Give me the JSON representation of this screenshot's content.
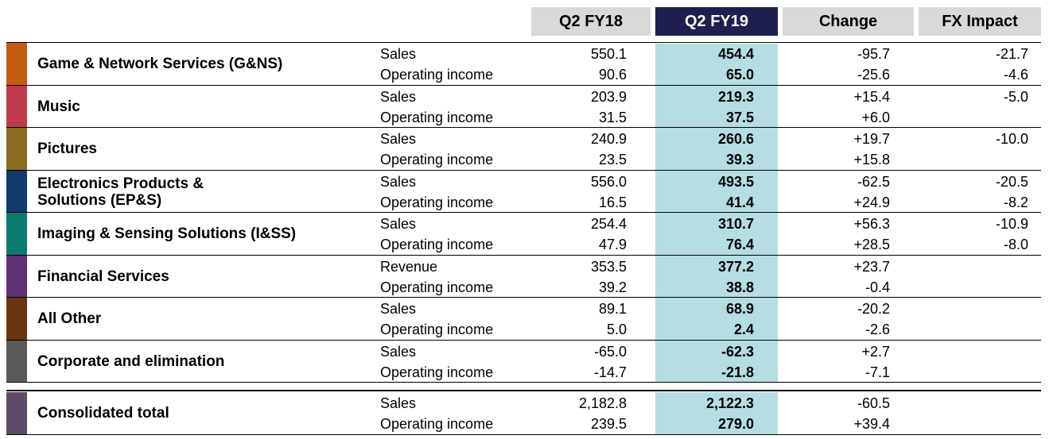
{
  "header": {
    "col1": "Q2 FY18",
    "col2": "Q2 FY19",
    "col3": "Change",
    "col4": "FX Impact"
  },
  "colors": {
    "header_gray": "#d9d9d9",
    "header_navy": "#1f1f4f",
    "highlight_column": "#b6dde3"
  },
  "segments": [
    {
      "name_lines": [
        "Game & Network Services (G&NS)"
      ],
      "color": "#c55a11",
      "rows": [
        {
          "label": "Sales",
          "q2fy18": "550.1",
          "q2fy19": "454.4",
          "change": "-95.7",
          "fx": "-21.7"
        },
        {
          "label": "Operating income",
          "q2fy18": "90.6",
          "q2fy19": "65.0",
          "change": "-25.6",
          "fx": "-4.6"
        }
      ]
    },
    {
      "name_lines": [
        "Music"
      ],
      "color": "#c0394a",
      "rows": [
        {
          "label": "Sales",
          "q2fy18": "203.9",
          "q2fy19": "219.3",
          "change": "+15.4",
          "fx": "-5.0"
        },
        {
          "label": "Operating income",
          "q2fy18": "31.5",
          "q2fy19": "37.5",
          "change": "+6.0",
          "fx": ""
        }
      ]
    },
    {
      "name_lines": [
        "Pictures"
      ],
      "color": "#8b6b1f",
      "rows": [
        {
          "label": "Sales",
          "q2fy18": "240.9",
          "q2fy19": "260.6",
          "change": "+19.7",
          "fx": "-10.0"
        },
        {
          "label": "Operating income",
          "q2fy18": "23.5",
          "q2fy19": "39.3",
          "change": "+15.8",
          "fx": ""
        }
      ]
    },
    {
      "name_lines": [
        "Electronics Products &",
        "Solutions (EP&S)"
      ],
      "color": "#123a6b",
      "rows": [
        {
          "label": "Sales",
          "q2fy18": "556.0",
          "q2fy19": "493.5",
          "change": "-62.5",
          "fx": "-20.5"
        },
        {
          "label": "Operating income",
          "q2fy18": "16.5",
          "q2fy19": "41.4",
          "change": "+24.9",
          "fx": "-8.2"
        }
      ]
    },
    {
      "name_lines": [
        "Imaging & Sensing Solutions (I&SS)"
      ],
      "color": "#0b7a6e",
      "rows": [
        {
          "label": "Sales",
          "q2fy18": "254.4",
          "q2fy19": "310.7",
          "change": "+56.3",
          "fx": "-10.9"
        },
        {
          "label": "Operating income",
          "q2fy18": "47.9",
          "q2fy19": "76.4",
          "change": "+28.5",
          "fx": "-8.0"
        }
      ]
    },
    {
      "name_lines": [
        "Financial Services"
      ],
      "color": "#5e3272",
      "rows": [
        {
          "label": "Revenue",
          "q2fy18": "353.5",
          "q2fy19": "377.2",
          "change": "+23.7",
          "fx": ""
        },
        {
          "label": "Operating income",
          "q2fy18": "39.2",
          "q2fy19": "38.8",
          "change": "-0.4",
          "fx": ""
        }
      ]
    },
    {
      "name_lines": [
        "All Other"
      ],
      "color": "#6b3410",
      "rows": [
        {
          "label": "Sales",
          "q2fy18": "89.1",
          "q2fy19": "68.9",
          "change": "-20.2",
          "fx": ""
        },
        {
          "label": "Operating income",
          "q2fy18": "5.0",
          "q2fy19": "2.4",
          "change": "-2.6",
          "fx": ""
        }
      ]
    },
    {
      "name_lines": [
        "Corporate and elimination"
      ],
      "color": "#595959",
      "rows": [
        {
          "label": "Sales",
          "q2fy18": "-65.0",
          "q2fy19": "-62.3",
          "change": "+2.7",
          "fx": ""
        },
        {
          "label": "Operating income",
          "q2fy18": "-14.7",
          "q2fy19": "-21.8",
          "change": "-7.1",
          "fx": ""
        }
      ]
    }
  ],
  "total": {
    "name_lines": [
      "Consolidated total"
    ],
    "color": "#5e4a66",
    "rows": [
      {
        "label": "Sales",
        "q2fy18": "2,182.8",
        "q2fy19": "2,122.3",
        "change": "-60.5",
        "fx": ""
      },
      {
        "label": "Operating income",
        "q2fy18": "239.5",
        "q2fy19": "279.0",
        "change": "+39.4",
        "fx": ""
      }
    ]
  }
}
